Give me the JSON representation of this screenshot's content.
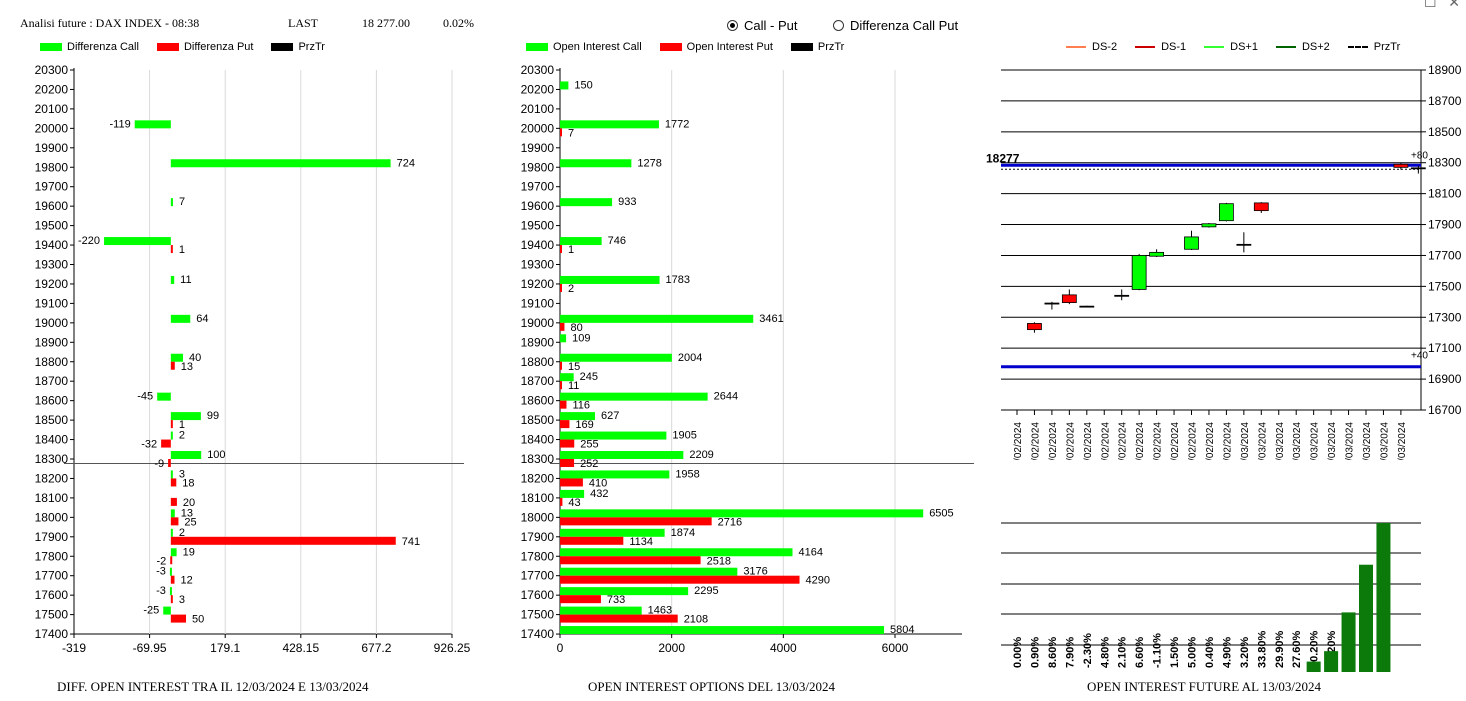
{
  "header": {
    "title": "Analisi future : DAX INDEX - 08:38",
    "last_label": "LAST",
    "last_value": "18 277.00",
    "change": "0.02%"
  },
  "radio": {
    "opt1": "Call - Put",
    "opt2": "Differenza Call Put",
    "selected": "opt1"
  },
  "colors": {
    "call": "#00ff00",
    "put": "#ff0000",
    "ds_minus2": "#ff7f50",
    "ds_minus1": "#cc0000",
    "ds_plus1": "#33ff33",
    "ds_plus2": "#006400",
    "level_line": "#0000cc",
    "future_bar": "#0b7a0b"
  },
  "chart_data": [
    {
      "type": "bar",
      "orientation": "horizontal",
      "title": "DIFF. OPEN INTEREST TRA IL 12/03/2024 E 13/03/2024",
      "legend": [
        "Differenza Call",
        "Differenza Put",
        "PrzTr"
      ],
      "strikes": [
        20300,
        20200,
        20100,
        20000,
        19900,
        19800,
        19700,
        19600,
        19500,
        19400,
        19300,
        19200,
        19100,
        19000,
        18900,
        18800,
        18700,
        18600,
        18500,
        18400,
        18300,
        18200,
        18100,
        18000,
        17900,
        17800,
        17700,
        17600,
        17500,
        17400
      ],
      "xticks": [
        "-319",
        "-69.95",
        "179.1",
        "428.15",
        "677.2",
        "926.25"
      ],
      "xlim": [
        -319,
        926.25
      ],
      "price_line": 18277,
      "series": [
        {
          "name": "Differenza Call",
          "points": [
            {
              "strike": 20000,
              "value": -119,
              "label": "-119"
            },
            {
              "strike": 19800,
              "value": 724,
              "label": "724"
            },
            {
              "strike": 19600,
              "value": 7,
              "label": "7"
            },
            {
              "strike": 19400,
              "value": -220,
              "label": "-220"
            },
            {
              "strike": 19200,
              "value": 11,
              "label": "11"
            },
            {
              "strike": 19000,
              "value": 64,
              "label": "64"
            },
            {
              "strike": 18800,
              "value": 40,
              "label": "40"
            },
            {
              "strike": 18600,
              "value": -45,
              "label": "-45"
            },
            {
              "strike": 18500,
              "value": 99,
              "label": "99"
            },
            {
              "strike": 18400,
              "value": 2,
              "label": "2"
            },
            {
              "strike": 18300,
              "value": 100,
              "label": "100"
            },
            {
              "strike": 18200,
              "value": 3,
              "label": "3"
            },
            {
              "strike": 18000,
              "value": 13,
              "label": "13"
            },
            {
              "strike": 17900,
              "value": 2,
              "label": "2"
            },
            {
              "strike": 17800,
              "value": 19,
              "label": "19"
            },
            {
              "strike": 17700,
              "value": -3,
              "label": "-3"
            },
            {
              "strike": 17600,
              "value": -3,
              "label": "-3"
            },
            {
              "strike": 17500,
              "value": -25,
              "label": "-25"
            }
          ]
        },
        {
          "name": "Differenza Put",
          "points": [
            {
              "strike": 19400,
              "value": 1,
              "label": "1"
            },
            {
              "strike": 18800,
              "value": 13,
              "label": "13"
            },
            {
              "strike": 18500,
              "value": 1,
              "label": "1"
            },
            {
              "strike": 18400,
              "value": -32,
              "label": "-32"
            },
            {
              "strike": 18300,
              "value": -9,
              "label": "-9"
            },
            {
              "strike": 18200,
              "value": 18,
              "label": "18"
            },
            {
              "strike": 18100,
              "value": 20,
              "label": "20"
            },
            {
              "strike": 18000,
              "value": 25,
              "label": "25"
            },
            {
              "strike": 17900,
              "value": 741,
              "label": "741"
            },
            {
              "strike": 17800,
              "value": -2,
              "label": "-2"
            },
            {
              "strike": 17700,
              "value": 12,
              "label": "12"
            },
            {
              "strike": 17600,
              "value": 3,
              "label": "3"
            },
            {
              "strike": 17500,
              "value": 50,
              "label": "50"
            }
          ]
        }
      ]
    },
    {
      "type": "bar",
      "orientation": "horizontal",
      "title": "OPEN INTEREST OPTIONS DEL 13/03/2024",
      "legend": [
        "Open Interest Call",
        "Open Interest Put",
        "PrzTr"
      ],
      "strikes": [
        20300,
        20200,
        20100,
        20000,
        19900,
        19800,
        19700,
        19600,
        19500,
        19400,
        19300,
        19200,
        19100,
        19000,
        18900,
        18800,
        18700,
        18600,
        18500,
        18400,
        18300,
        18200,
        18100,
        18000,
        17900,
        17800,
        17700,
        17600,
        17500,
        17400
      ],
      "xticks": [
        "0",
        "2000",
        "4000",
        "6000"
      ],
      "xlim": [
        0,
        7200
      ],
      "price_line": 18277,
      "series": [
        {
          "name": "Open Interest Call",
          "points": [
            {
              "strike": 20200,
              "value": 150,
              "label": "150"
            },
            {
              "strike": 20000,
              "value": 1772,
              "label": "1772"
            },
            {
              "strike": 19800,
              "value": 1278,
              "label": "1278"
            },
            {
              "strike": 19600,
              "value": 933,
              "label": "933"
            },
            {
              "strike": 19400,
              "value": 746,
              "label": "746"
            },
            {
              "strike": 19200,
              "value": 1783,
              "label": "1783"
            },
            {
              "strike": 19000,
              "value": 3461,
              "label": "3461"
            },
            {
              "strike": 18900,
              "value": 109,
              "label": "109"
            },
            {
              "strike": 18800,
              "value": 2004,
              "label": "2004"
            },
            {
              "strike": 18700,
              "value": 245,
              "label": "245"
            },
            {
              "strike": 18600,
              "value": 2644,
              "label": "2644"
            },
            {
              "strike": 18500,
              "value": 627,
              "label": "627"
            },
            {
              "strike": 18400,
              "value": 1905,
              "label": "1905"
            },
            {
              "strike": 18300,
              "value": 2209,
              "label": "2209"
            },
            {
              "strike": 18200,
              "value": 1958,
              "label": "1958"
            },
            {
              "strike": 18100,
              "value": 432,
              "label": "432"
            },
            {
              "strike": 18000,
              "value": 6505,
              "label": "6505"
            },
            {
              "strike": 17900,
              "value": 1874,
              "label": "1874"
            },
            {
              "strike": 17800,
              "value": 4164,
              "label": "4164"
            },
            {
              "strike": 17700,
              "value": 3176,
              "label": "3176"
            },
            {
              "strike": 17600,
              "value": 2295,
              "label": "2295"
            },
            {
              "strike": 17500,
              "value": 1463,
              "label": "1463"
            },
            {
              "strike": 17400,
              "value": 5804,
              "label": "5804"
            }
          ]
        },
        {
          "name": "Open Interest Put",
          "points": [
            {
              "strike": 20000,
              "value": 7,
              "label": "7"
            },
            {
              "strike": 19400,
              "value": 1,
              "label": "1"
            },
            {
              "strike": 19200,
              "value": 2,
              "label": "2"
            },
            {
              "strike": 19000,
              "value": 80,
              "label": "80"
            },
            {
              "strike": 18800,
              "value": 15,
              "label": "15"
            },
            {
              "strike": 18700,
              "value": 11,
              "label": "11"
            },
            {
              "strike": 18600,
              "value": 116,
              "label": "116"
            },
            {
              "strike": 18500,
              "value": 169,
              "label": "169"
            },
            {
              "strike": 18400,
              "value": 255,
              "label": "255"
            },
            {
              "strike": 18300,
              "value": 252,
              "label": "252"
            },
            {
              "strike": 18200,
              "value": 410,
              "label": "410"
            },
            {
              "strike": 18100,
              "value": 43,
              "label": "43"
            },
            {
              "strike": 18000,
              "value": 2716,
              "label": "2716"
            },
            {
              "strike": 17900,
              "value": 1134,
              "label": "1134"
            },
            {
              "strike": 17800,
              "value": 2518,
              "label": "2518"
            },
            {
              "strike": 17700,
              "value": 4290,
              "label": "4290"
            },
            {
              "strike": 17600,
              "value": 733,
              "label": "733"
            },
            {
              "strike": 17500,
              "value": 2108,
              "label": "2108"
            }
          ]
        }
      ]
    },
    {
      "type": "candlestick",
      "title": "",
      "legend": [
        "DS-2",
        "DS-1",
        "DS+1",
        "DS+2",
        "PrzTr"
      ],
      "ylim": [
        16700,
        18900
      ],
      "yticks": [
        "18900",
        "18700",
        "18500",
        "18300",
        "18100",
        "17900",
        "17700",
        "17500",
        "17300",
        "17100",
        "16900",
        "16700"
      ],
      "price_label": "18277",
      "price": 18277,
      "upper_level": 18277,
      "upper_level_label": "+80",
      "lower_level": 16980,
      "lower_level_label": "+40",
      "dates": [
        "13/02/2024",
        "14/02/2024",
        "15/02/2024",
        "16/02/2024",
        "19/02/2024",
        "20/02/2024",
        "21/02/2024",
        "22/02/2024",
        "23/02/2024",
        "26/02/2024",
        "27/02/2024",
        "28/02/2024",
        "29/02/2024",
        "01/03/2024",
        "04/03/2024",
        "05/03/2024",
        "06/03/2024",
        "07/03/2024",
        "08/03/2024",
        "11/03/2024",
        "12/03/2024",
        "13/03/2024",
        "14/03/2024"
      ],
      "candles": [
        {
          "i": 1,
          "open": 17260,
          "close": 17220,
          "high": 17268,
          "low": 17200
        },
        {
          "i": 2,
          "open": 17390,
          "close": 17392,
          "high": 17400,
          "low": 17350
        },
        {
          "i": 3,
          "open": 17445,
          "close": 17395,
          "high": 17480,
          "low": 17385
        },
        {
          "i": 4,
          "open": 17370,
          "close": 17372,
          "high": 17375,
          "low": 17365
        },
        {
          "i": 6,
          "open": 17440,
          "close": 17442,
          "high": 17480,
          "low": 17410
        },
        {
          "i": 7,
          "open": 17480,
          "close": 17700,
          "high": 17710,
          "low": 17475
        },
        {
          "i": 8,
          "open": 17695,
          "close": 17720,
          "high": 17740,
          "low": 17690
        },
        {
          "i": 10,
          "open": 17740,
          "close": 17820,
          "high": 17860,
          "low": 17735
        },
        {
          "i": 11,
          "open": 17885,
          "close": 17905,
          "high": 17910,
          "low": 17880
        },
        {
          "i": 12,
          "open": 17925,
          "close": 18035,
          "high": 18040,
          "low": 17920
        },
        {
          "i": 13,
          "open": 17770,
          "close": 17772,
          "high": 17850,
          "low": 17720
        },
        {
          "i": 14,
          "open": 18040,
          "close": 17990,
          "high": 18045,
          "low": 17975
        },
        {
          "i": 22,
          "open": 18290,
          "close": 18270,
          "high": 18300,
          "low": 18255
        },
        {
          "i": 23,
          "open": 18265,
          "close": 18267,
          "high": 18280,
          "low": 18230
        }
      ]
    },
    {
      "type": "bar",
      "title": "OPEN INTEREST FUTURE AL 13/03/2024",
      "labels": [
        "0.00%",
        "0.90%",
        "8.60%",
        "7.90%",
        "-2.30%",
        "4.80%",
        "2.10%",
        "6.60%",
        "-1.10%",
        "1.50%",
        "5.00%",
        "0.40%",
        "4.90%",
        "3.20%",
        "33.80%",
        "29.90%",
        "27.60%",
        "70.20%",
        "40.20%",
        "62.60%",
        "44.40%",
        "26.40%"
      ],
      "bar_values": [
        0,
        0,
        0,
        0,
        0,
        0,
        0,
        0,
        0,
        0,
        0,
        0,
        0,
        0,
        0,
        0,
        0,
        7,
        14,
        40,
        72,
        100
      ],
      "ylim": [
        0,
        100
      ]
    }
  ],
  "footers": {
    "left": "DIFF. OPEN INTEREST TRA IL 12/03/2024 E 13/03/2024",
    "middle": "OPEN INTEREST OPTIONS DEL 13/03/2024",
    "right": "OPEN INTEREST FUTURE AL 13/03/2024"
  }
}
